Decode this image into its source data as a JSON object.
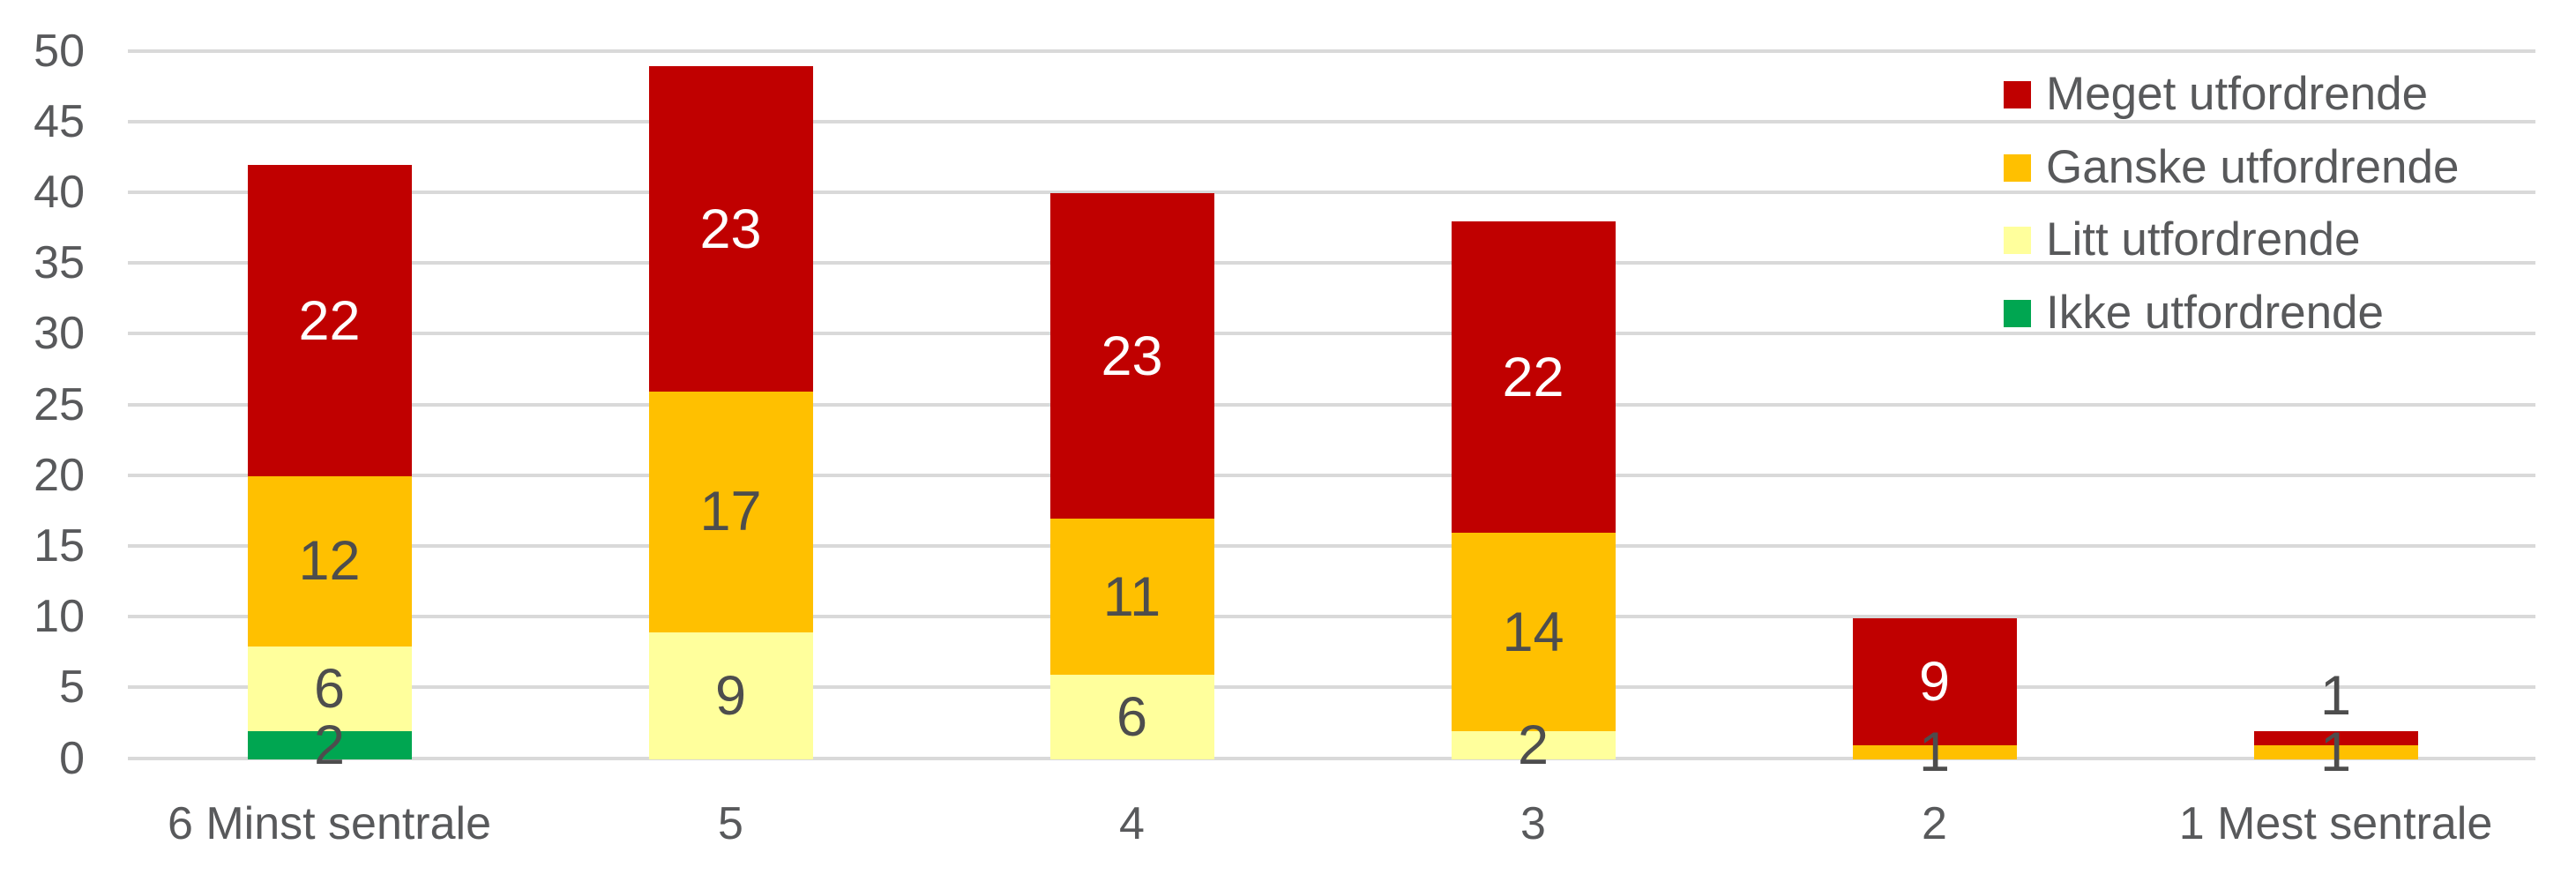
{
  "chart_data": {
    "type": "bar",
    "stacked": true,
    "title": "",
    "xlabel": "",
    "ylabel": "",
    "categories": [
      "6 Minst sentrale",
      "5",
      "4",
      "3",
      "2",
      "1 Mest sentrale"
    ],
    "series": [
      {
        "name": "Ikke utfordrende",
        "color": "#00A651",
        "label_color": "#4D4D4D",
        "values": [
          2,
          0,
          0,
          0,
          0,
          0
        ]
      },
      {
        "name": "Litt utfordrende",
        "color": "#FFFF9C",
        "label_color": "#4D4D4D",
        "values": [
          6,
          9,
          6,
          2,
          0,
          0
        ]
      },
      {
        "name": "Ganske utfordrende",
        "color": "#FFC000",
        "label_color": "#4D4D4D",
        "values": [
          12,
          17,
          11,
          14,
          1,
          1
        ]
      },
      {
        "name": "Meget utfordrende",
        "color": "#C00000",
        "label_color": "#FFFFFF",
        "values": [
          22,
          23,
          23,
          22,
          9,
          1
        ]
      }
    ],
    "legend": [
      {
        "label": "Meget utfordrende",
        "color": "#C00000"
      },
      {
        "label": "Ganske utfordrende",
        "color": "#FFC000"
      },
      {
        "label": "Litt utfordrende",
        "color": "#FFFF9C"
      },
      {
        "label": "Ikke utfordrende",
        "color": "#00A651"
      }
    ],
    "legend_position": "top-right",
    "grid": true,
    "y_axis": {
      "min": 0,
      "max": 50,
      "step": 5
    },
    "y_ticks": [
      "0",
      "5",
      "10",
      "15",
      "20",
      "25",
      "30",
      "35",
      "40",
      "45",
      "50"
    ],
    "bar_totals": [
      42,
      49,
      40,
      38,
      10,
      2
    ]
  },
  "colors": {
    "gridline": "#D9D9D9",
    "axis_text": "#58595B",
    "dark_data_label": "#4D4D4D",
    "background": "#FFFFFF"
  }
}
